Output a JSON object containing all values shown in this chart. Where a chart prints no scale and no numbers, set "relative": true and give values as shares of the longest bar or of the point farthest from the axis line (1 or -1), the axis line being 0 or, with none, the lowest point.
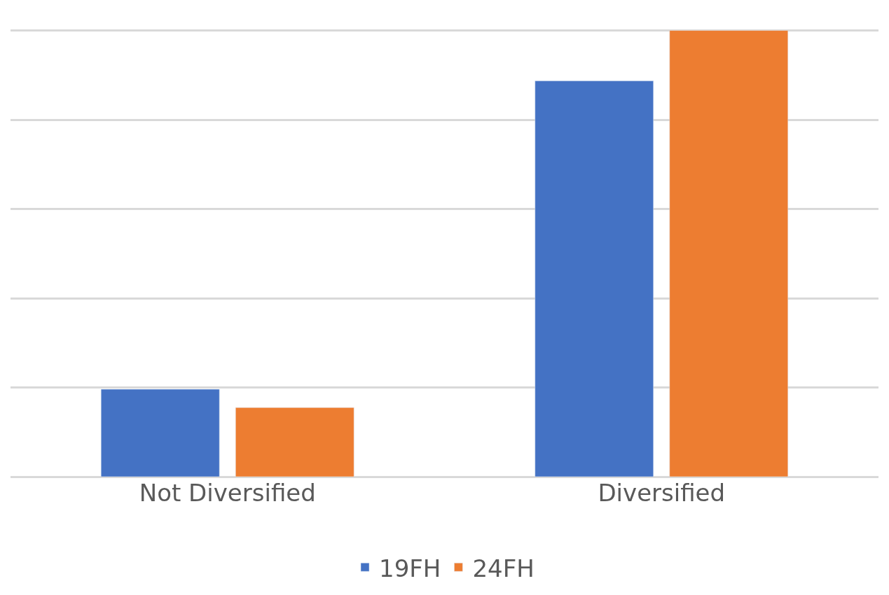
{
  "chart_data": {
    "type": "bar",
    "relative": true,
    "categories": [
      "Not Diversified",
      "Diversified"
    ],
    "series": [
      {
        "name": "19FH",
        "color": "#4472c4",
        "values": [
          0.196,
          0.887
        ]
      },
      {
        "name": "24FH",
        "color": "#ed7d31",
        "values": [
          0.155,
          1
        ]
      }
    ],
    "grid": "y",
    "legend": "bottom"
  }
}
